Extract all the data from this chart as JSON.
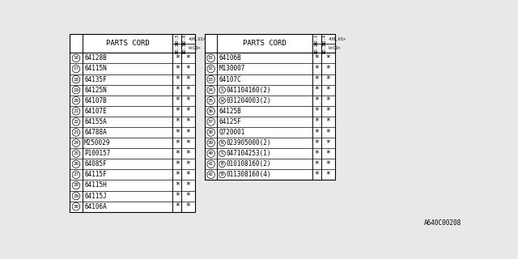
{
  "bg_color": "#e8e8e8",
  "footer_text": "A640C00208",
  "col1_header": "PARTS CORD",
  "left_table": {
    "rows": [
      {
        "num": "16",
        "part": "64128B",
        "prefix": "",
        "suffix": ""
      },
      {
        "num": "17",
        "part": "64115N",
        "prefix": "",
        "suffix": ""
      },
      {
        "num": "18",
        "part": "64135F",
        "prefix": "",
        "suffix": ""
      },
      {
        "num": "19",
        "part": "64125N",
        "prefix": "",
        "suffix": ""
      },
      {
        "num": "20",
        "part": "64107B",
        "prefix": "",
        "suffix": ""
      },
      {
        "num": "21",
        "part": "64107E",
        "prefix": "",
        "suffix": ""
      },
      {
        "num": "22",
        "part": "64155A",
        "prefix": "",
        "suffix": ""
      },
      {
        "num": "23",
        "part": "64788A",
        "prefix": "",
        "suffix": ""
      },
      {
        "num": "24",
        "part": "M250029",
        "prefix": "",
        "suffix": ""
      },
      {
        "num": "25",
        "part": "P100157",
        "prefix": "",
        "suffix": ""
      },
      {
        "num": "26",
        "part": "64085F",
        "prefix": "",
        "suffix": ""
      },
      {
        "num": "27",
        "part": "64115F",
        "prefix": "",
        "suffix": ""
      },
      {
        "num": "28",
        "part": "64115H",
        "prefix": "",
        "suffix": ""
      },
      {
        "num": "29",
        "part": "64115J",
        "prefix": "",
        "suffix": ""
      },
      {
        "num": "30",
        "part": "64106A",
        "prefix": "",
        "suffix": ""
      }
    ]
  },
  "right_table": {
    "rows": [
      {
        "num": "31",
        "part": "64106B",
        "prefix": "",
        "suffix": ""
      },
      {
        "num": "32",
        "part": "M130007",
        "prefix": "",
        "suffix": ""
      },
      {
        "num": "33",
        "part": "64107C",
        "prefix": "",
        "suffix": ""
      },
      {
        "num": "34",
        "part": "041104160",
        "prefix": "S",
        "suffix": "(2)"
      },
      {
        "num": "35",
        "part": "031204003",
        "prefix": "W",
        "suffix": "(2)"
      },
      {
        "num": "36",
        "part": "64125B",
        "prefix": "",
        "suffix": ""
      },
      {
        "num": "37",
        "part": "64125F",
        "prefix": "",
        "suffix": ""
      },
      {
        "num": "38",
        "part": "Q720001",
        "prefix": "",
        "suffix": ""
      },
      {
        "num": "39",
        "part": "023905000",
        "prefix": "N",
        "suffix": "(2)"
      },
      {
        "num": "40",
        "part": "047104253",
        "prefix": "S",
        "suffix": "(1)"
      },
      {
        "num": "41",
        "part": "010108160",
        "prefix": "B",
        "suffix": "(2)"
      },
      {
        "num": "42",
        "part": "011308160",
        "prefix": "B",
        "suffix": "(4)"
      }
    ]
  }
}
